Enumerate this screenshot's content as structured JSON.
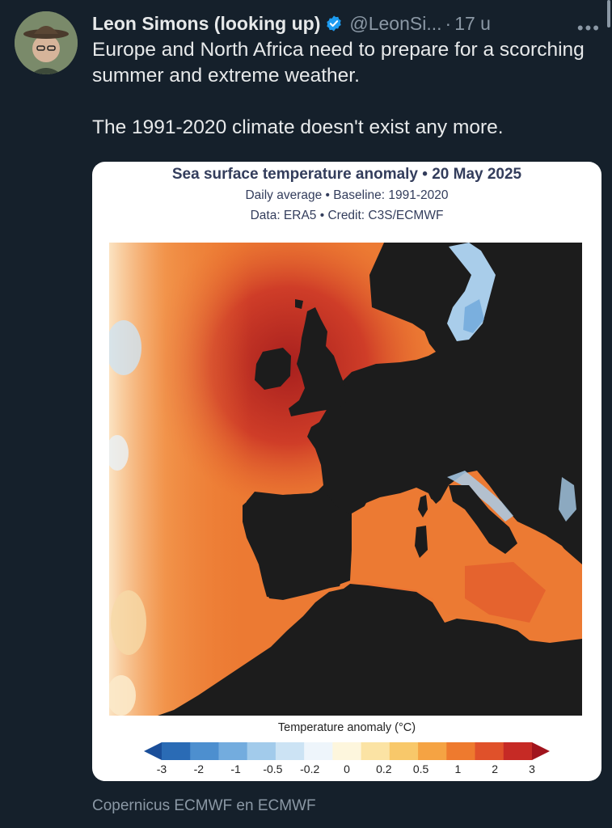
{
  "tweet": {
    "author_name": "Leon Simons (looking up)",
    "handle": "@LeonSi...",
    "separator": "·",
    "time": "17 u",
    "more_label": "•••",
    "text_lines": [
      "Europe and North Africa need to prepare for a scorching summer and extreme weather.",
      "The 1991-2020 climate doesn't exist any more."
    ],
    "footer": "Copernicus ECMWF en ECMWF"
  },
  "media": {
    "title": "Sea surface temperature anomaly • 20 May 2025",
    "subtitle1": "Daily average • Baseline: 1991-2020",
    "subtitle2": "Data: ERA5 • Credit: C3S/ECMWF",
    "legend_title": "Temperature anomaly (°C)",
    "ticks": [
      "-3",
      "-2",
      "-1",
      "-0.5",
      "-0.2",
      "0",
      "0.2",
      "0.5",
      "1",
      "2",
      "3"
    ],
    "colorbar_colors": [
      "#1a4e99",
      "#2a6bb5",
      "#4d8fcf",
      "#73acde",
      "#a2cbeb",
      "#cce3f4",
      "#eef5fb",
      "#fdf6dd",
      "#fbe3a4",
      "#f8c86a",
      "#f5a343",
      "#ee7a2e",
      "#e0512a",
      "#c62a25",
      "#a1141d"
    ],
    "colors": {
      "land": "#1c1c1c",
      "ocean_warm": "#e86a2c",
      "ocean_hot": "#c8352a",
      "ocean_cool": "#a9cdea"
    }
  }
}
